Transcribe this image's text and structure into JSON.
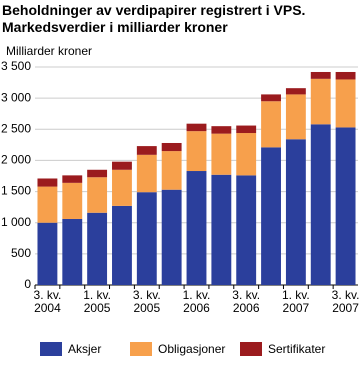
{
  "chart_data": {
    "type": "stacked-bar",
    "title": "Beholdninger av verdipapirer registrert i VPS. Markedsverdier i milliarder kroner",
    "y_label": "Milliarder kroner",
    "categories": [
      "3. kv.\n2004",
      null,
      "1. kv.\n2005",
      null,
      "3. kv.\n2005",
      null,
      "1. kv.\n2006",
      null,
      "3. kv.\n2006",
      null,
      "1. kv.\n2007",
      null,
      "3. kv.\n2007"
    ],
    "series": [
      {
        "name": "Aksjer",
        "color": "#2b3f9c",
        "values": [
          1000,
          1060,
          1160,
          1270,
          1490,
          1530,
          1830,
          1770,
          1760,
          2210,
          2340,
          2580,
          2530
        ]
      },
      {
        "name": "Obligasjoner",
        "color": "#f7a04c",
        "values": [
          580,
          580,
          570,
          580,
          600,
          620,
          640,
          660,
          680,
          740,
          720,
          730,
          770
        ]
      },
      {
        "name": "Sertifikater",
        "color": "#9b1b1e",
        "values": [
          130,
          120,
          120,
          130,
          140,
          130,
          120,
          120,
          120,
          110,
          100,
          110,
          120
        ]
      }
    ],
    "ylim": [
      0,
      3500
    ],
    "yticks": [
      0,
      500,
      {
        "value": 1000,
        "label": "1 000"
      },
      {
        "value": 1500,
        "label": "1 500"
      },
      {
        "value": 2000,
        "label": "2 000"
      },
      {
        "value": 2500,
        "label": "2 500"
      },
      {
        "value": 3000,
        "label": "3 000"
      },
      {
        "value": 3500,
        "label": "3 500"
      }
    ],
    "grid": true
  }
}
